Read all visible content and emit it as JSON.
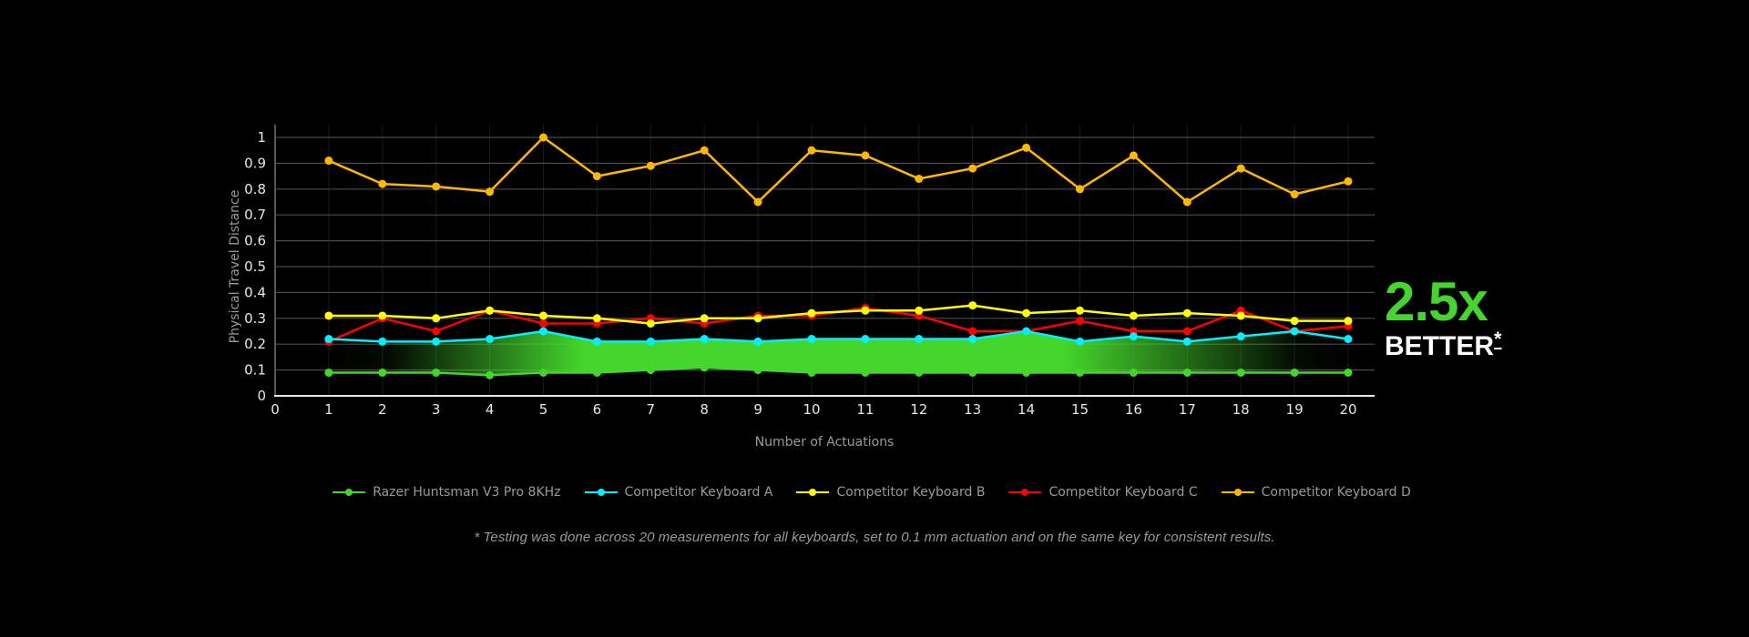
{
  "chart_data": {
    "type": "line",
    "title": "",
    "xlabel": "Number of Actuations",
    "ylabel": "Physical Travel Distance",
    "xlim": [
      0,
      20
    ],
    "ylim": [
      0,
      1
    ],
    "x_ticks": [
      "0",
      "1",
      "2",
      "3",
      "4",
      "5",
      "6",
      "7",
      "8",
      "9",
      "10",
      "11",
      "12",
      "13",
      "14",
      "15",
      "16",
      "17",
      "18",
      "19",
      "20"
    ],
    "y_ticks": [
      "0",
      "0.1",
      "0.2",
      "0.3",
      "0.4",
      "0.5",
      "0.6",
      "0.7",
      "0.8",
      "0.9",
      "1"
    ],
    "grid": true,
    "legend_position": "bottom-center",
    "x": [
      1,
      2,
      3,
      4,
      5,
      6,
      7,
      8,
      9,
      10,
      11,
      12,
      13,
      14,
      15,
      16,
      17,
      18,
      19,
      20
    ],
    "series": [
      {
        "name": "Razer Huntsman V3 Pro 8KHz",
        "color": "#44d62c",
        "values": [
          0.09,
          0.09,
          0.09,
          0.08,
          0.09,
          0.09,
          0.1,
          0.11,
          0.1,
          0.09,
          0.09,
          0.09,
          0.09,
          0.09,
          0.09,
          0.09,
          0.09,
          0.09,
          0.09,
          0.09
        ]
      },
      {
        "name": "Competitor Keyboard A",
        "color": "#00f0ff",
        "values": [
          0.22,
          0.21,
          0.21,
          0.22,
          0.25,
          0.21,
          0.21,
          0.22,
          0.21,
          0.22,
          0.22,
          0.22,
          0.22,
          0.25,
          0.21,
          0.23,
          0.21,
          0.23,
          0.25,
          0.22
        ]
      },
      {
        "name": "Competitor Keyboard B",
        "color": "#ffff00",
        "values": [
          0.31,
          0.31,
          0.3,
          0.33,
          0.31,
          0.3,
          0.28,
          0.3,
          0.3,
          0.32,
          0.33,
          0.33,
          0.35,
          0.32,
          0.33,
          0.31,
          0.32,
          0.31,
          0.29,
          0.29
        ]
      },
      {
        "name": "Competitor Keyboard C",
        "color": "#ff0000",
        "values": [
          0.21,
          0.3,
          0.25,
          0.33,
          0.28,
          0.28,
          0.3,
          0.28,
          0.31,
          0.31,
          0.34,
          0.31,
          0.25,
          0.25,
          0.29,
          0.25,
          0.25,
          0.33,
          0.25,
          0.27
        ]
      },
      {
        "name": "Competitor Keyboard D",
        "color": "#ffb800",
        "values": [
          0.91,
          0.82,
          0.81,
          0.79,
          1.0,
          0.85,
          0.89,
          0.95,
          0.75,
          0.95,
          0.93,
          0.84,
          0.88,
          0.96,
          0.8,
          0.93,
          0.75,
          0.88,
          0.78,
          0.83
        ]
      }
    ],
    "highlight_band": {
      "between": [
        "Razer Huntsman V3 Pro 8KHz",
        "Competitor Keyboard A"
      ],
      "color": "#44d62c"
    }
  },
  "callout": {
    "multiplier": "2.5x",
    "word": "BETTER",
    "asterisk": "*",
    "color": "#44d62c"
  },
  "footnote": "* Testing was done across 20 measurements for all keyboards, set to 0.1 mm actuation and on the same key for consistent results."
}
